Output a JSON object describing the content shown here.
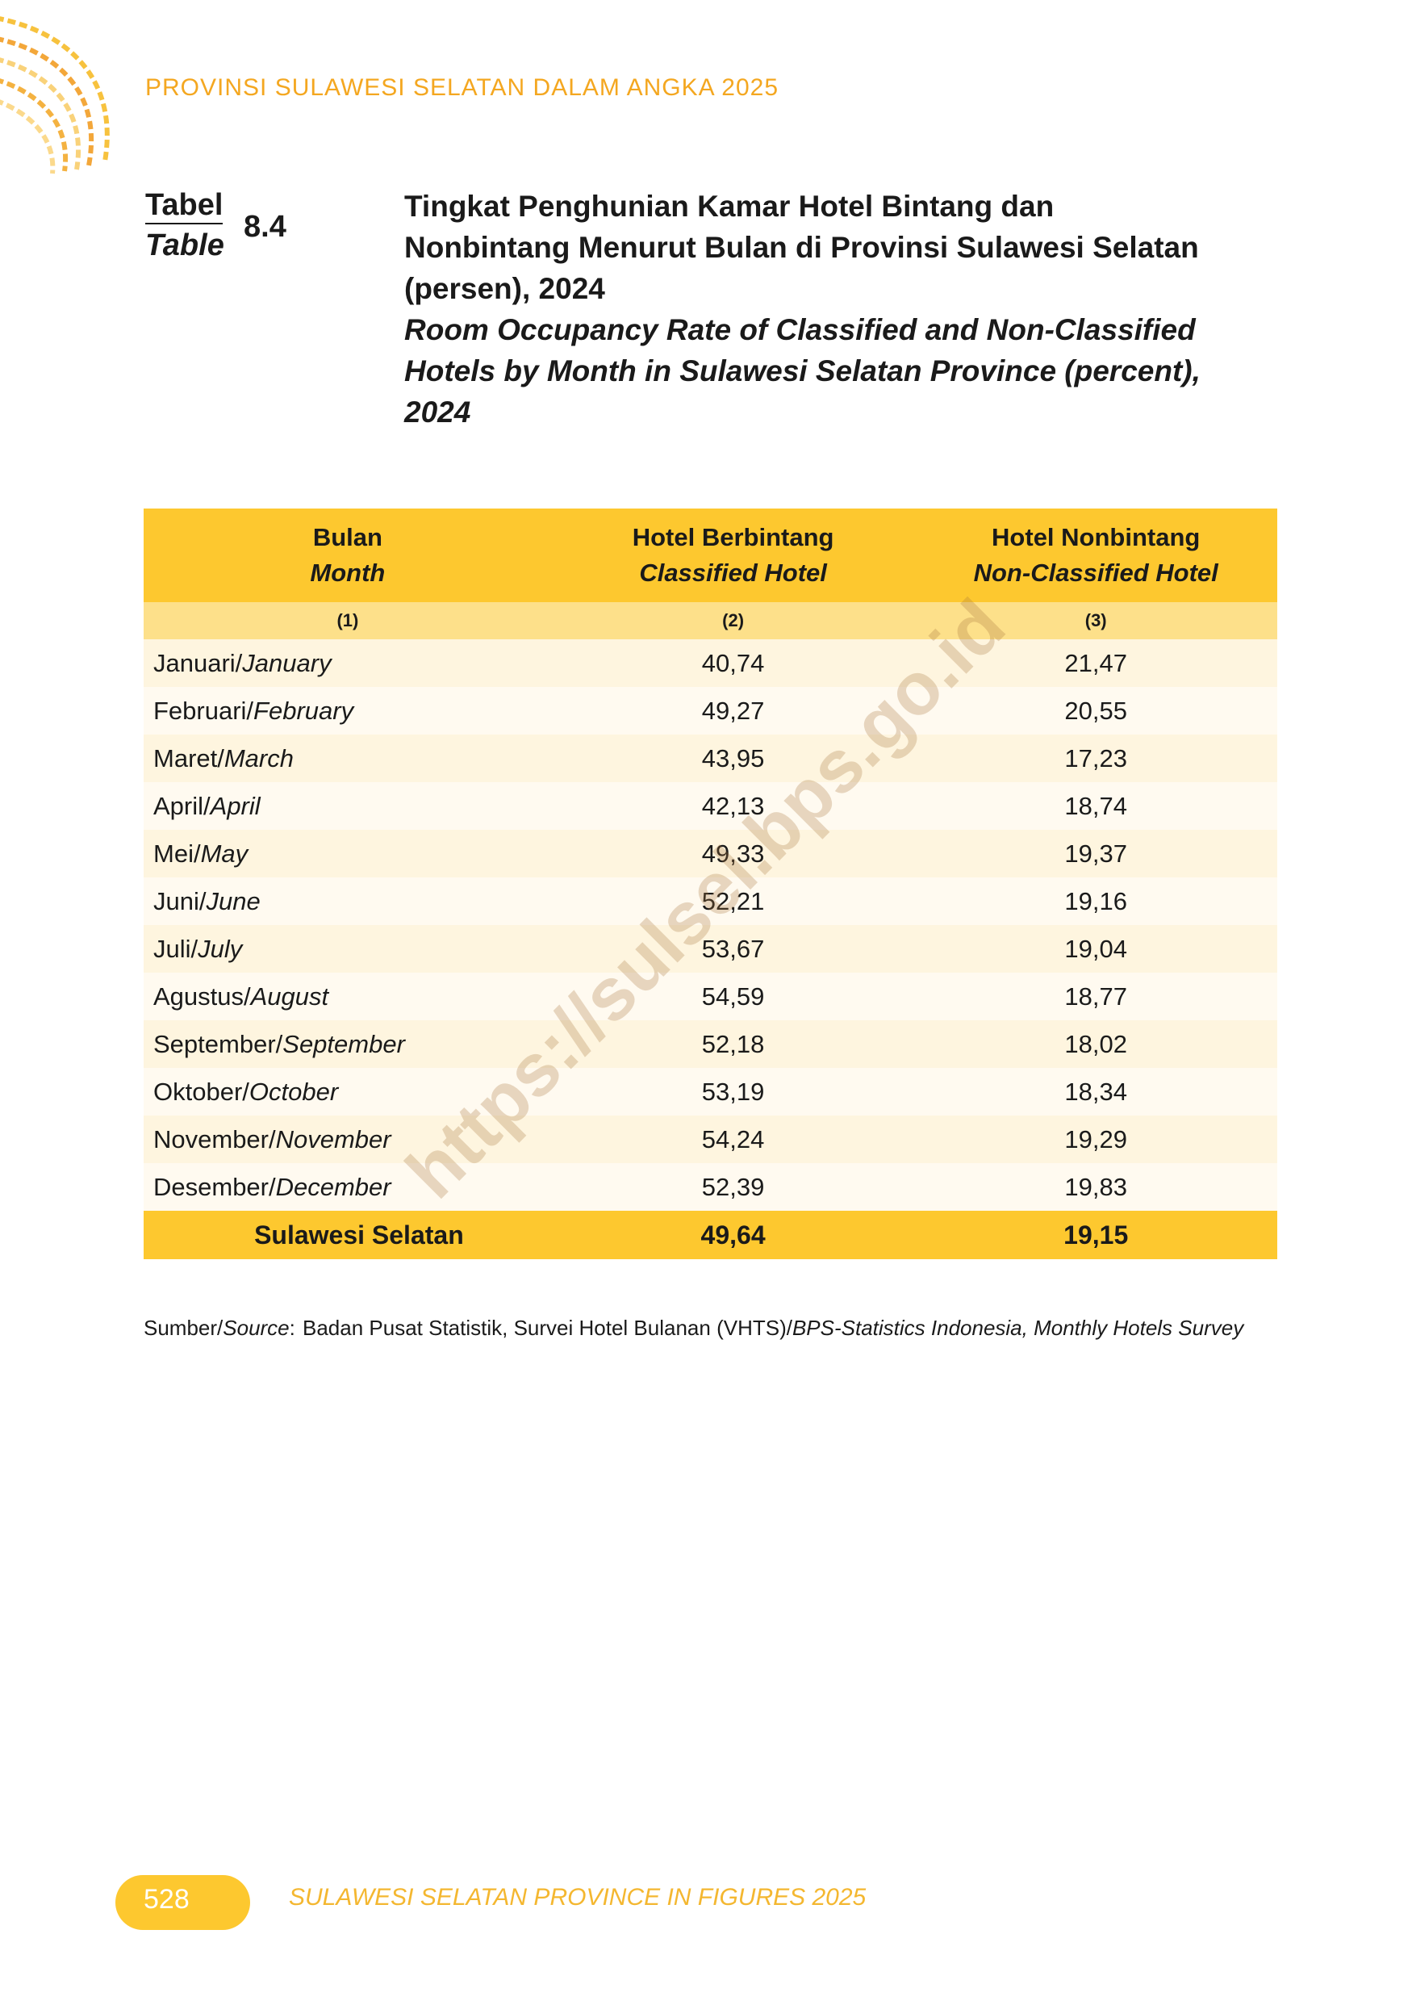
{
  "header": {
    "running_title": "PROVINSI SULAWESI SELATAN DALAM ANGKA 2025"
  },
  "table_label": {
    "id": "Tabel",
    "en": "Table",
    "number": "8.4"
  },
  "title": {
    "id_lines": [
      "Tingkat Penghunian Kamar Hotel Bintang dan",
      "Nonbintang Menurut Bulan di Provinsi Sulawesi Selatan",
      "(persen), 2024"
    ],
    "en_lines": [
      "Room Occupancy Rate of Classified and Non-Classified",
      "Hotels by Month in Sulawesi Selatan Province (percent),",
      "2024"
    ]
  },
  "table": {
    "columns": [
      {
        "id": "Bulan",
        "en": "Month",
        "num": "(1)"
      },
      {
        "id": "Hotel Berbintang",
        "en": "Classified Hotel",
        "num": "(2)"
      },
      {
        "id": "Hotel Nonbintang",
        "en": "Non-Classified Hotel",
        "num": "(3)"
      }
    ],
    "rows": [
      [
        "Januari/",
        "January",
        "40,74",
        "21,47"
      ],
      [
        "Februari/",
        "February",
        "49,27",
        "20,55"
      ],
      [
        "Maret/",
        "March",
        "43,95",
        "17,23"
      ],
      [
        "April/",
        "April",
        "42,13",
        "18,74"
      ],
      [
        "Mei/",
        "May",
        "49,33",
        "19,37"
      ],
      [
        "Juni/",
        "June",
        "52,21",
        "19,16"
      ],
      [
        "Juli/",
        "July",
        "53,67",
        "19,04"
      ],
      [
        "Agustus/",
        "August",
        "54,59",
        "18,77"
      ],
      [
        "September/",
        "September",
        "52,18",
        "18,02"
      ],
      [
        "Oktober/",
        "October",
        "53,19",
        "18,34"
      ],
      [
        "November/",
        "November",
        "54,24",
        "19,29"
      ],
      [
        "Desember/",
        "December",
        "52,39",
        "19,83"
      ]
    ],
    "total": [
      "Sulawesi Selatan",
      "49,64",
      "19,15"
    ]
  },
  "source": {
    "label": [
      "Sumber/",
      "Source",
      ":"
    ],
    "text": [
      "Badan Pusat Statistik, Survei Hotel Bulanan (VHTS)/",
      "BPS-Statistics Indonesia, Monthly Hotels Survey"
    ]
  },
  "watermark": "https://sulsel.bps.go.id",
  "footer": {
    "page": "528",
    "text": "SULAWESI SELATAN PROVINCE IN FIGURES 2025"
  }
}
